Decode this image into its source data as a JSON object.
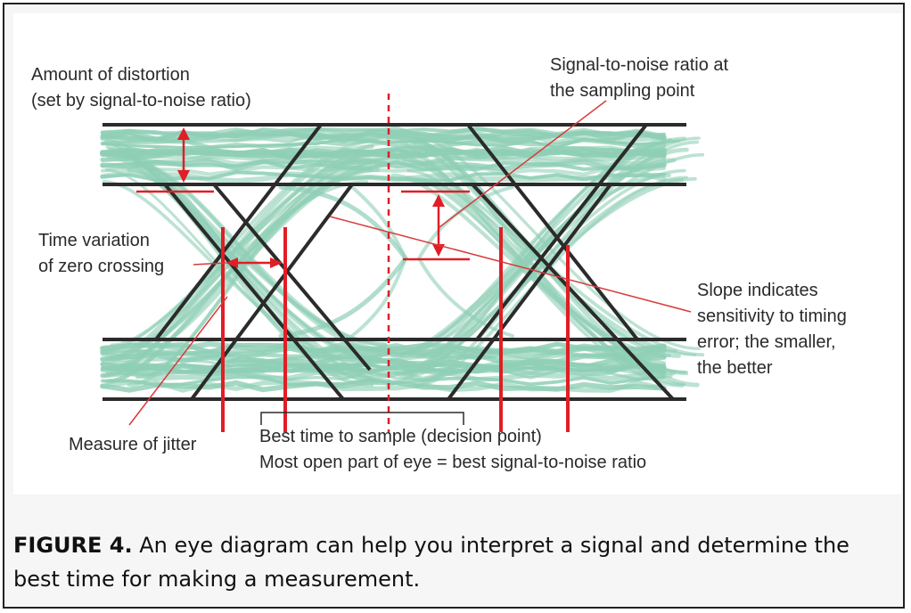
{
  "annotations": {
    "distortion": [
      "Amount of distortion",
      "(set by signal-to-noise ratio)"
    ],
    "snr_point": [
      "Signal-to-noise ratio at",
      "the sampling point"
    ],
    "time_variation": [
      "Time variation",
      "of zero crossing"
    ],
    "slope": [
      "Slope indicates",
      "sensitivity to timing",
      "error; the smaller,",
      "the better"
    ],
    "jitter": "Measure of jitter",
    "best_time": [
      "Best time to sample (decision point)",
      "Most open part of eye = best signal-to-noise ratio"
    ]
  },
  "caption": {
    "figure_number": "FIGURE 4.",
    "text": " An eye diagram can help you interpret a signal and determine the best time for making a measurement."
  },
  "colors": {
    "trace": "#8fcfb6",
    "trace_outline": "#2b2b2b",
    "marker": "#e01e26",
    "leader": "#d93a3a",
    "text": "#2a2a2a"
  }
}
